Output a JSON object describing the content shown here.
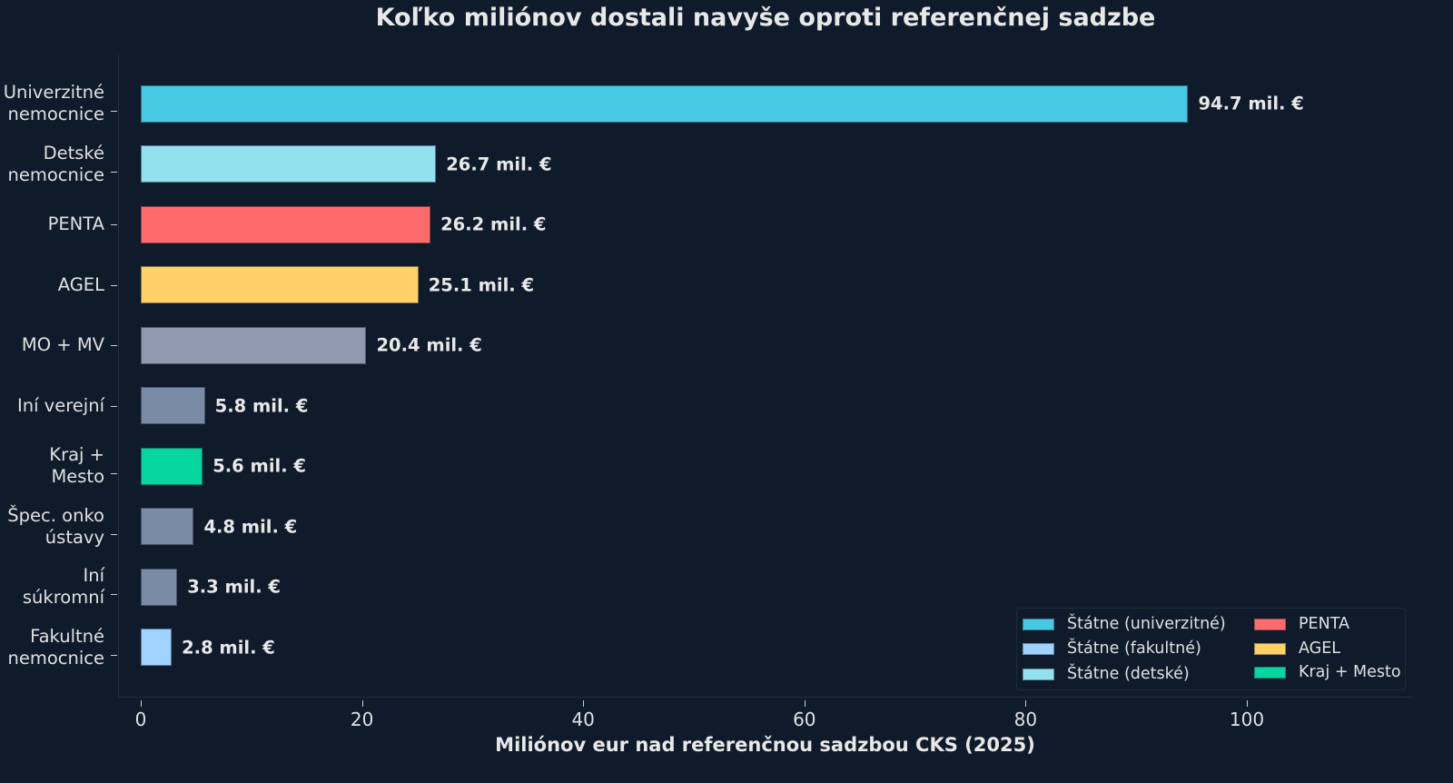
{
  "chart_data": {
    "type": "bar",
    "orientation": "horizontal",
    "title": "Koľko miliónov dostali navyše oproti referenčnej sadzbe",
    "xlabel": "Miliónov eur nad referenčnou sadzbou CKS (2025)",
    "ylabel": "",
    "xlim": [
      -2,
      115
    ],
    "xticks": [
      0,
      20,
      40,
      60,
      80,
      100
    ],
    "grid": false,
    "legend_position": "lower right",
    "categories": [
      "Univerzitné\nnemocnice",
      "Detské\nnemocnice",
      "PENTA",
      "AGEL",
      "MO + MV",
      "Iní verejní",
      "Kraj +\nMesto",
      "Špec. onko\nústavy",
      "Iní\nsúkromní",
      "Fakultné\nnemocnice"
    ],
    "values": [
      94.7,
      26.7,
      26.2,
      25.1,
      20.4,
      5.8,
      5.6,
      4.8,
      3.3,
      2.8
    ],
    "value_labels": [
      "94.7 mil. €",
      "26.7 mil. €",
      "26.2 mil. €",
      "25.1 mil. €",
      "20.4 mil. €",
      "5.8 mil. €",
      "5.6 mil. €",
      "4.8 mil. €",
      "3.3 mil. €",
      "2.8 mil. €"
    ],
    "colors": [
      "#48c9e3",
      "#93e0ef",
      "#ff6b6b",
      "#ffd166",
      "#8d9ab0",
      "#7a8ba6",
      "#06d6a0",
      "#7a8ba6",
      "#7a8ba6",
      "#a0d2ff"
    ],
    "legend": [
      {
        "label": "Štátne (univerzitné)",
        "color": "#48c9e3"
      },
      {
        "label": "Štátne (fakultné)",
        "color": "#a0d2ff"
      },
      {
        "label": "Štátne (detské)",
        "color": "#93e0ef"
      },
      {
        "label": "PENTA",
        "color": "#ff6b6b"
      },
      {
        "label": "AGEL",
        "color": "#ffd166"
      },
      {
        "label": "Kraj + Mesto",
        "color": "#06d6a0"
      }
    ]
  }
}
